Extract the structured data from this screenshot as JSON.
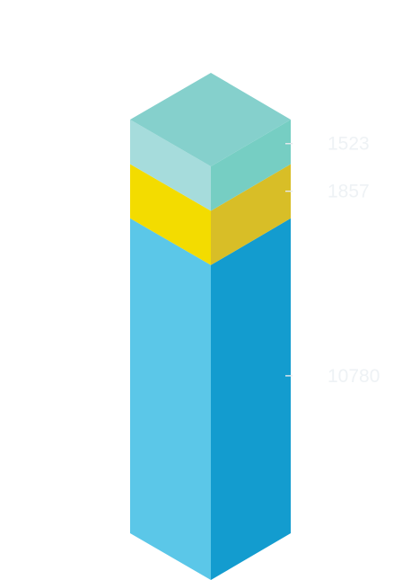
{
  "chart_data": {
    "type": "bar",
    "orientation": "stacked-3d-isometric",
    "series": [
      {
        "name": "",
        "label": "10780",
        "value": 10780,
        "top_color": "#7fcfcb",
        "front_color": "#5bc7e8",
        "side_color": "#139ccf"
      },
      {
        "name": "",
        "label": "1857",
        "value": 1857,
        "top_color": "#7fcfcb",
        "front_color": "#f3dc00",
        "side_color": "#d8be27"
      },
      {
        "name": "",
        "label": "1523",
        "value": 1523,
        "top_color": "#85d0cc",
        "front_color": "#a6dcdc",
        "side_color": "#76cec3"
      }
    ],
    "stack_order": "bottom-to-top",
    "total": 14160,
    "title": "",
    "xlabel": "",
    "ylabel": "",
    "legend": "none",
    "grid": false,
    "label_color": "#eef2f5"
  }
}
